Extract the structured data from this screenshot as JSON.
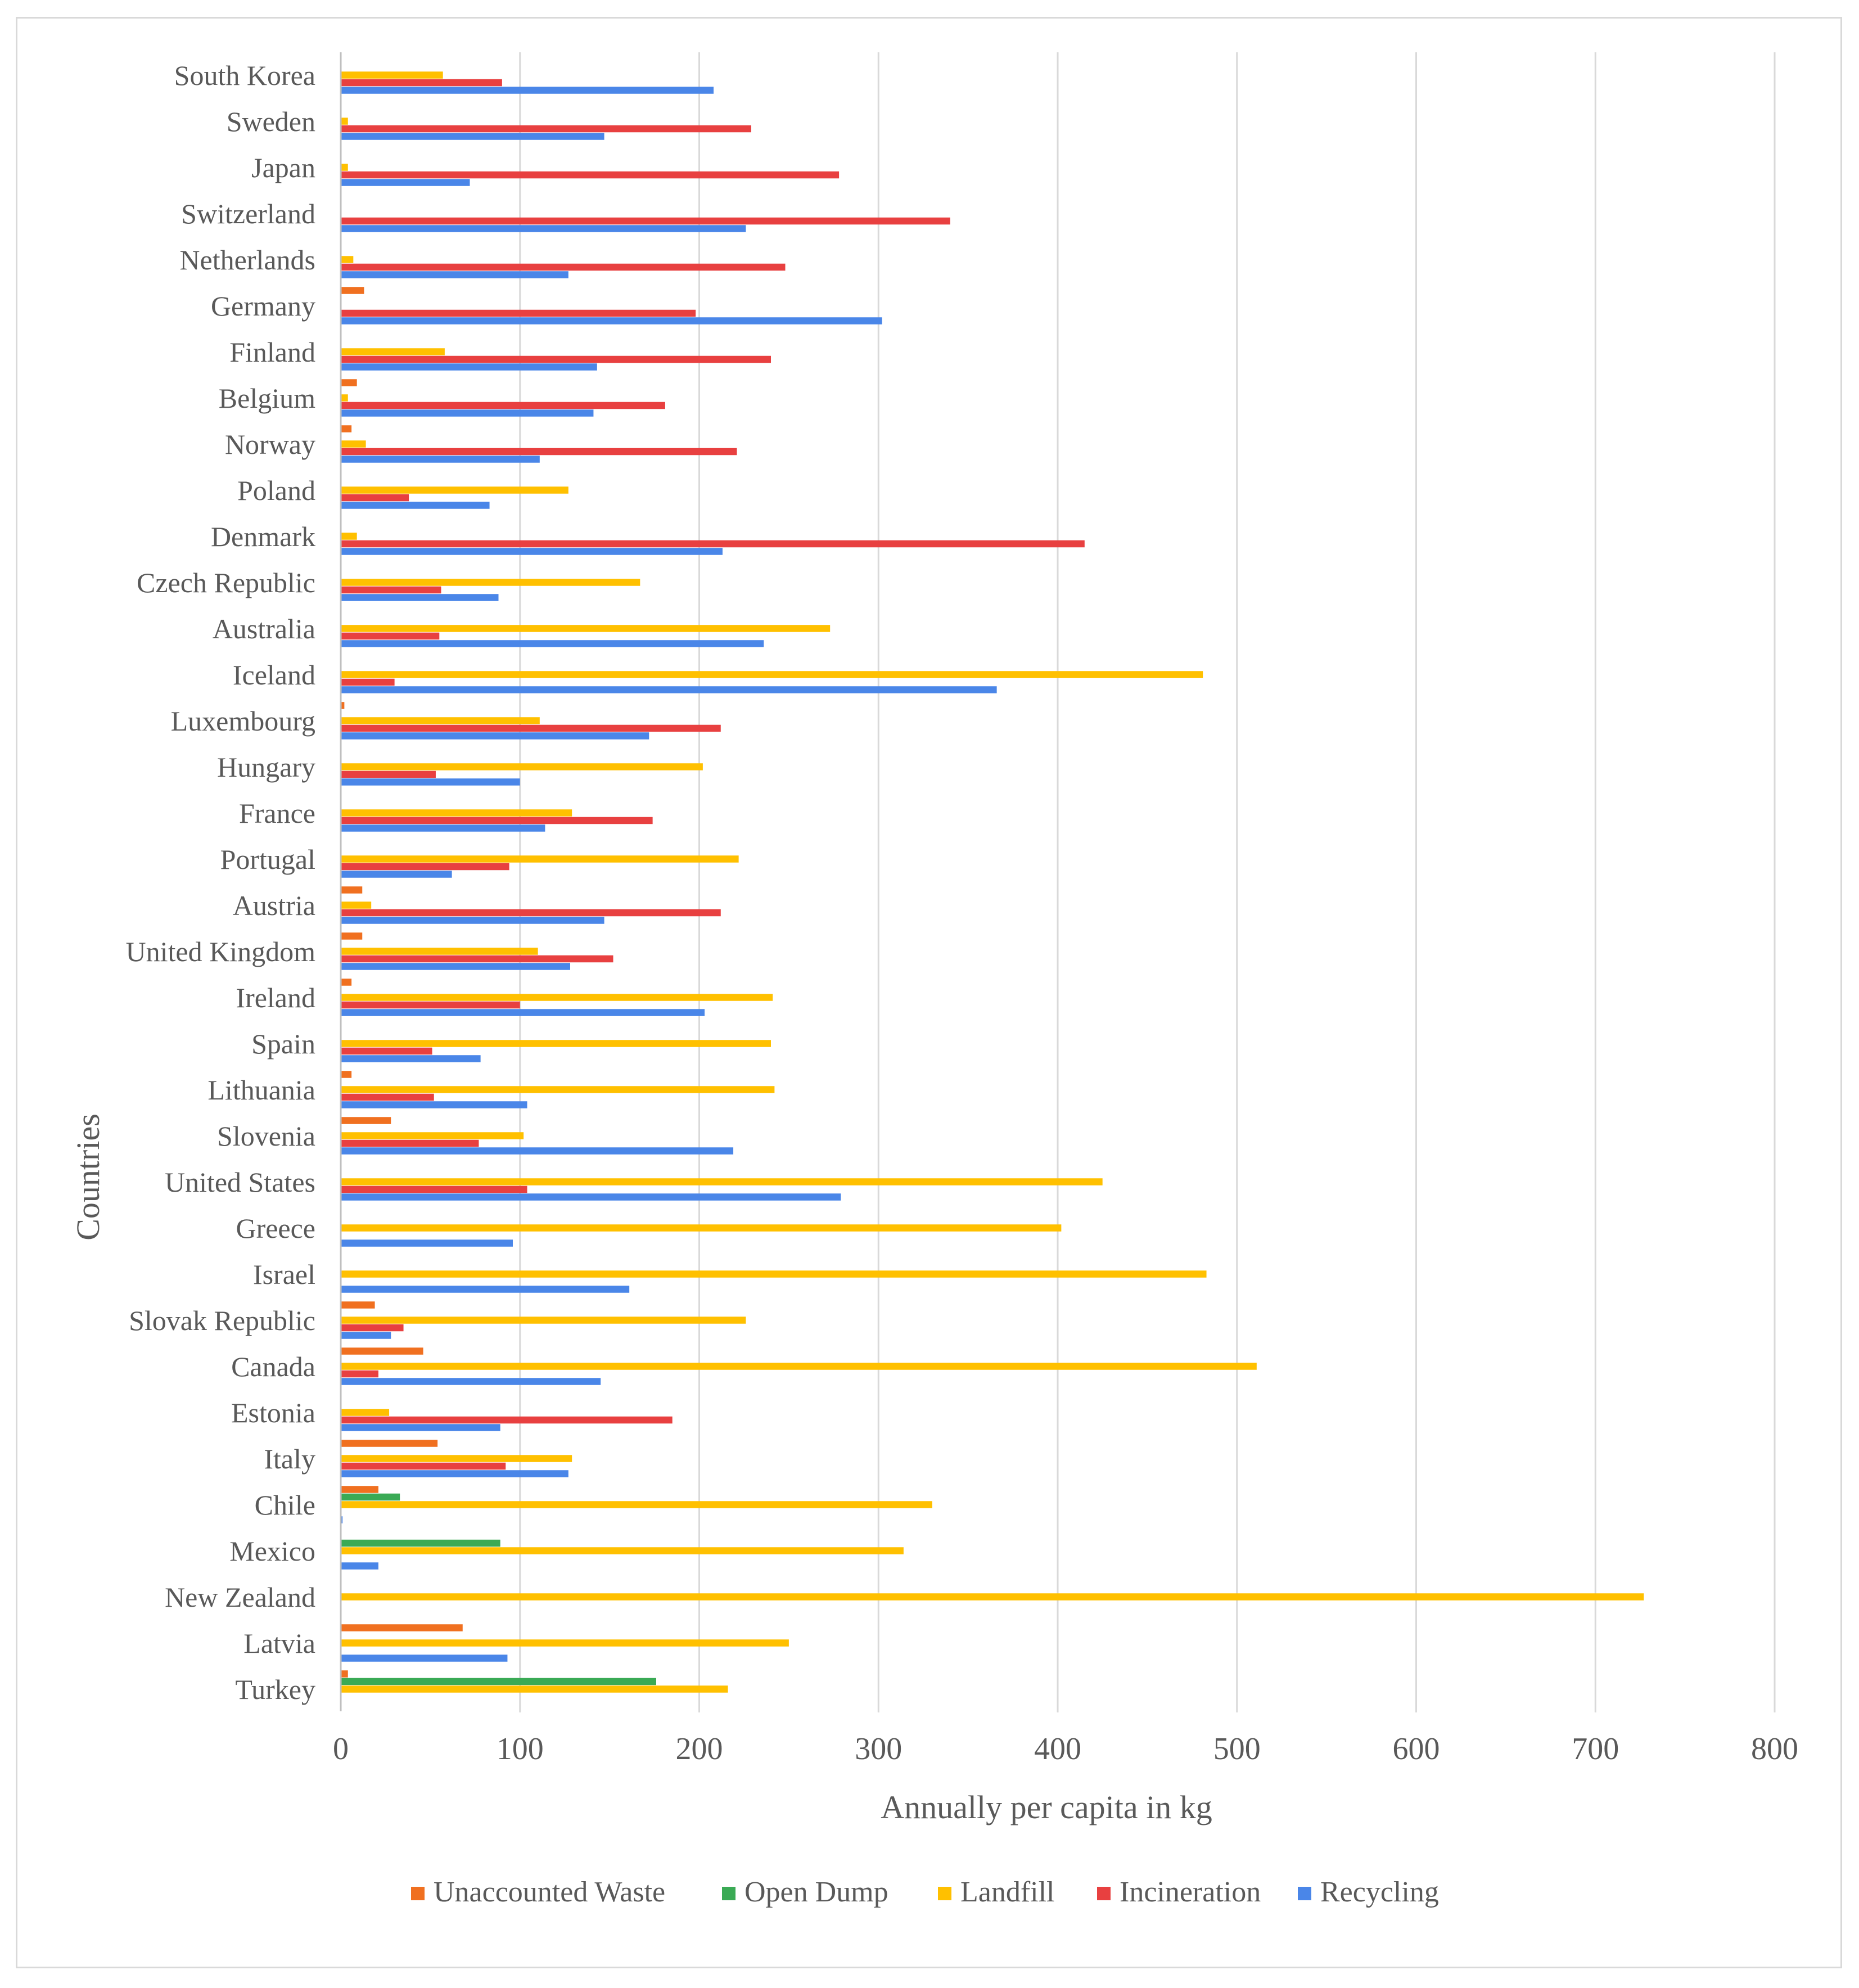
{
  "chart_data": {
    "type": "bar",
    "orientation": "horizontal",
    "title": "",
    "xlabel": "Annually per capita in kg",
    "ylabel": "Countries",
    "xlim": [
      0,
      800
    ],
    "xticks": [
      0,
      100,
      200,
      300,
      400,
      500,
      600,
      700,
      800
    ],
    "grid": true,
    "legend_position": "bottom",
    "categories": [
      "South Korea",
      "Sweden",
      "Japan",
      "Switzerland",
      "Netherlands",
      "Germany",
      "Finland",
      "Belgium",
      "Norway",
      "Poland",
      "Denmark",
      "Czech Republic",
      "Australia",
      "Iceland",
      "Luxembourg",
      "Hungary",
      "France",
      "Portugal",
      "Austria",
      "United Kingdom",
      "Ireland",
      "Spain",
      "Lithuania",
      "Slovenia",
      "United States",
      "Greece",
      "Israel",
      "Slovak Republic",
      "Canada",
      "Estonia",
      "Italy",
      "Chile",
      "Mexico",
      "New Zealand",
      "Latvia",
      "Turkey"
    ],
    "series": [
      {
        "name": "Unaccounted Waste",
        "color": "#f07020",
        "values": [
          0,
          0,
          0,
          0,
          0,
          13,
          0,
          9,
          6,
          0,
          0,
          0,
          0,
          0,
          2,
          0,
          0,
          0,
          12,
          12,
          6,
          0,
          6,
          28,
          0,
          0,
          0,
          19,
          46,
          0,
          54,
          21,
          0,
          0,
          68,
          4
        ]
      },
      {
        "name": "Open Dump",
        "color": "#3aaa55",
        "values": [
          0,
          0,
          0,
          0,
          0,
          0,
          0,
          0,
          0,
          0,
          0,
          0,
          0,
          0,
          0,
          0,
          0,
          0,
          0,
          0,
          0,
          0,
          0,
          0,
          0,
          0,
          0,
          0,
          0,
          0,
          0,
          33,
          89,
          0,
          0,
          176
        ]
      },
      {
        "name": "Landfill",
        "color": "#ffc000",
        "values": [
          57,
          4,
          4,
          0,
          7,
          0,
          58,
          4,
          14,
          127,
          9,
          167,
          273,
          481,
          111,
          202,
          129,
          222,
          17,
          110,
          241,
          240,
          242,
          102,
          425,
          402,
          483,
          226,
          511,
          27,
          129,
          330,
          314,
          727,
          250,
          216
        ]
      },
      {
        "name": "Incineration",
        "color": "#e84040",
        "values": [
          90,
          229,
          278,
          340,
          248,
          198,
          240,
          181,
          221,
          38,
          415,
          56,
          55,
          30,
          212,
          53,
          174,
          94,
          212,
          152,
          100,
          51,
          52,
          77,
          104,
          0,
          0,
          35,
          21,
          185,
          92,
          0,
          0,
          0,
          0,
          0
        ]
      },
      {
        "name": "Recycling",
        "color": "#4a86e8",
        "values": [
          208,
          147,
          72,
          226,
          127,
          302,
          143,
          141,
          111,
          83,
          213,
          88,
          236,
          366,
          172,
          100,
          114,
          62,
          147,
          128,
          203,
          78,
          104,
          219,
          279,
          96,
          161,
          28,
          145,
          89,
          127,
          1,
          21,
          0,
          93,
          0
        ]
      }
    ]
  }
}
